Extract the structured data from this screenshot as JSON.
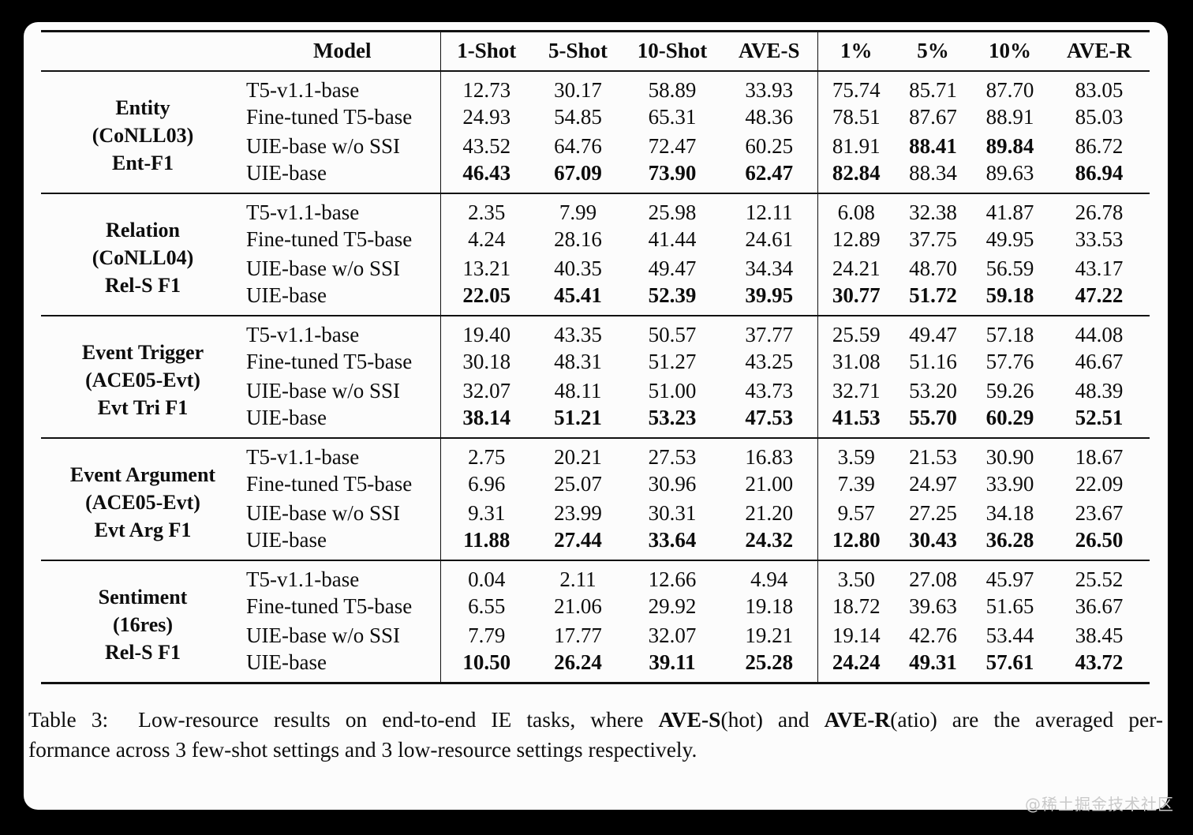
{
  "table": {
    "headers": [
      "Model",
      "1-Shot",
      "5-Shot",
      "10-Shot",
      "AVE-S",
      "1%",
      "5%",
      "10%",
      "AVE-R"
    ],
    "groups": [
      {
        "task_lines": [
          "Entity",
          "(CoNLL03)",
          "Ent-F1"
        ],
        "rows": [
          {
            "model": "T5-v1.1-base",
            "values": [
              "12.73",
              "30.17",
              "58.89",
              "33.93",
              "75.74",
              "85.71",
              "87.70",
              "83.05"
            ],
            "bold": [
              false,
              false,
              false,
              false,
              false,
              false,
              false,
              false
            ]
          },
          {
            "model": "Fine-tuned T5-base",
            "values": [
              "24.93",
              "54.85",
              "65.31",
              "48.36",
              "78.51",
              "87.67",
              "88.91",
              "85.03"
            ],
            "bold": [
              false,
              false,
              false,
              false,
              false,
              false,
              false,
              false
            ]
          },
          {
            "model": "UIE-base w/o SSI",
            "values": [
              "43.52",
              "64.76",
              "72.47",
              "60.25",
              "81.91",
              "88.41",
              "89.84",
              "86.72"
            ],
            "bold": [
              false,
              false,
              false,
              false,
              false,
              true,
              true,
              false
            ]
          },
          {
            "model": "UIE-base",
            "values": [
              "46.43",
              "67.09",
              "73.90",
              "62.47",
              "82.84",
              "88.34",
              "89.63",
              "86.94"
            ],
            "bold": [
              true,
              true,
              true,
              true,
              true,
              false,
              false,
              true
            ]
          }
        ]
      },
      {
        "task_lines": [
          "Relation",
          "(CoNLL04)",
          "Rel-S F1"
        ],
        "rows": [
          {
            "model": "T5-v1.1-base",
            "values": [
              "2.35",
              "7.99",
              "25.98",
              "12.11",
              "6.08",
              "32.38",
              "41.87",
              "26.78"
            ],
            "bold": [
              false,
              false,
              false,
              false,
              false,
              false,
              false,
              false
            ]
          },
          {
            "model": "Fine-tuned T5-base",
            "values": [
              "4.24",
              "28.16",
              "41.44",
              "24.61",
              "12.89",
              "37.75",
              "49.95",
              "33.53"
            ],
            "bold": [
              false,
              false,
              false,
              false,
              false,
              false,
              false,
              false
            ]
          },
          {
            "model": "UIE-base w/o SSI",
            "values": [
              "13.21",
              "40.35",
              "49.47",
              "34.34",
              "24.21",
              "48.70",
              "56.59",
              "43.17"
            ],
            "bold": [
              false,
              false,
              false,
              false,
              false,
              false,
              false,
              false
            ]
          },
          {
            "model": "UIE-base",
            "values": [
              "22.05",
              "45.41",
              "52.39",
              "39.95",
              "30.77",
              "51.72",
              "59.18",
              "47.22"
            ],
            "bold": [
              true,
              true,
              true,
              true,
              true,
              true,
              true,
              true
            ]
          }
        ]
      },
      {
        "task_lines": [
          "Event Trigger",
          "(ACE05-Evt)",
          "Evt Tri F1"
        ],
        "rows": [
          {
            "model": "T5-v1.1-base",
            "values": [
              "19.40",
              "43.35",
              "50.57",
              "37.77",
              "25.59",
              "49.47",
              "57.18",
              "44.08"
            ],
            "bold": [
              false,
              false,
              false,
              false,
              false,
              false,
              false,
              false
            ]
          },
          {
            "model": "Fine-tuned T5-base",
            "values": [
              "30.18",
              "48.31",
              "51.27",
              "43.25",
              "31.08",
              "51.16",
              "57.76",
              "46.67"
            ],
            "bold": [
              false,
              false,
              false,
              false,
              false,
              false,
              false,
              false
            ]
          },
          {
            "model": "UIE-base w/o SSI",
            "values": [
              "32.07",
              "48.11",
              "51.00",
              "43.73",
              "32.71",
              "53.20",
              "59.26",
              "48.39"
            ],
            "bold": [
              false,
              false,
              false,
              false,
              false,
              false,
              false,
              false
            ]
          },
          {
            "model": "UIE-base",
            "values": [
              "38.14",
              "51.21",
              "53.23",
              "47.53",
              "41.53",
              "55.70",
              "60.29",
              "52.51"
            ],
            "bold": [
              true,
              true,
              true,
              true,
              true,
              true,
              true,
              true
            ]
          }
        ]
      },
      {
        "task_lines": [
          "Event Argument",
          "(ACE05-Evt)",
          "Evt Arg F1"
        ],
        "rows": [
          {
            "model": "T5-v1.1-base",
            "values": [
              "2.75",
              "20.21",
              "27.53",
              "16.83",
              "3.59",
              "21.53",
              "30.90",
              "18.67"
            ],
            "bold": [
              false,
              false,
              false,
              false,
              false,
              false,
              false,
              false
            ]
          },
          {
            "model": "Fine-tuned T5-base",
            "values": [
              "6.96",
              "25.07",
              "30.96",
              "21.00",
              "7.39",
              "24.97",
              "33.90",
              "22.09"
            ],
            "bold": [
              false,
              false,
              false,
              false,
              false,
              false,
              false,
              false
            ]
          },
          {
            "model": "UIE-base w/o SSI",
            "values": [
              "9.31",
              "23.99",
              "30.31",
              "21.20",
              "9.57",
              "27.25",
              "34.18",
              "23.67"
            ],
            "bold": [
              false,
              false,
              false,
              false,
              false,
              false,
              false,
              false
            ]
          },
          {
            "model": "UIE-base",
            "values": [
              "11.88",
              "27.44",
              "33.64",
              "24.32",
              "12.80",
              "30.43",
              "36.28",
              "26.50"
            ],
            "bold": [
              true,
              true,
              true,
              true,
              true,
              true,
              true,
              true
            ]
          }
        ]
      },
      {
        "task_lines": [
          "Sentiment",
          "(16res)",
          "Rel-S F1"
        ],
        "rows": [
          {
            "model": "T5-v1.1-base",
            "values": [
              "0.04",
              "2.11",
              "12.66",
              "4.94",
              "3.50",
              "27.08",
              "45.97",
              "25.52"
            ],
            "bold": [
              false,
              false,
              false,
              false,
              false,
              false,
              false,
              false
            ]
          },
          {
            "model": "Fine-tuned T5-base",
            "values": [
              "6.55",
              "21.06",
              "29.92",
              "19.18",
              "18.72",
              "39.63",
              "51.65",
              "36.67"
            ],
            "bold": [
              false,
              false,
              false,
              false,
              false,
              false,
              false,
              false
            ]
          },
          {
            "model": "UIE-base w/o SSI",
            "values": [
              "7.79",
              "17.77",
              "32.07",
              "19.21",
              "19.14",
              "42.76",
              "53.44",
              "38.45"
            ],
            "bold": [
              false,
              false,
              false,
              false,
              false,
              false,
              false,
              false
            ]
          },
          {
            "model": "UIE-base",
            "values": [
              "10.50",
              "26.24",
              "39.11",
              "25.28",
              "24.24",
              "49.31",
              "57.61",
              "43.72"
            ],
            "bold": [
              true,
              true,
              true,
              true,
              true,
              true,
              true,
              true
            ]
          }
        ]
      }
    ]
  },
  "caption": {
    "line1_segments": [
      {
        "text": "Table 3:  Low-resource results on end-to-end IE tasks, where ",
        "bold": false
      },
      {
        "text": "AVE-S",
        "bold": true
      },
      {
        "text": "(hot) and ",
        "bold": false
      },
      {
        "text": "AVE-R",
        "bold": true
      },
      {
        "text": "(atio) are the averaged per-",
        "bold": false
      }
    ],
    "line2_segments": [
      {
        "text": "formance across 3 few-shot settings and 3 low-resource settings respectively.",
        "bold": false
      }
    ]
  },
  "watermark": "@稀土掘金技术社区"
}
